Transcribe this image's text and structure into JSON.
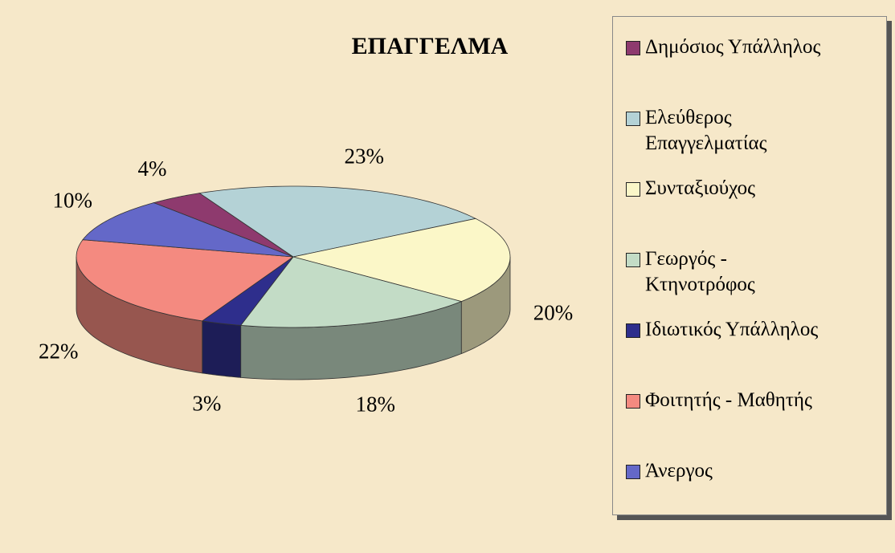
{
  "chart_data": {
    "type": "pie3d",
    "title": "ΕΠΑΓΓΕΛΜΑ",
    "categories": [
      "Δημόσιος Υπάλληλος",
      "Ελεύθερος\nΕπαγγελματίας",
      "Συνταξιούχος",
      "Γεωργός -\nΚτηνοτρόφος",
      "Ιδιωτικός Υπάλληλος",
      "Φοιτητής - Μαθητής",
      "Άνεργος"
    ],
    "values": [
      4,
      23,
      20,
      18,
      3,
      22,
      10
    ],
    "value_labels": [
      "4%",
      "23%",
      "20%",
      "18%",
      "3%",
      "22%",
      "10%"
    ],
    "colors": [
      "#8e3a6e",
      "#b4d2d6",
      "#fbf7c8",
      "#c3dcc6",
      "#2e2e8c",
      "#f48a80",
      "#6468c8"
    ],
    "legend": "right"
  }
}
